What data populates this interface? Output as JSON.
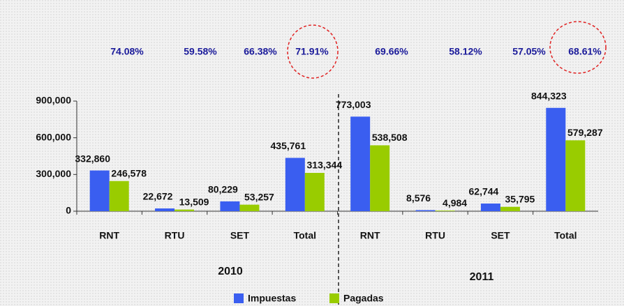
{
  "chart_data": {
    "type": "bar",
    "categories": [
      "RNT",
      "RTU",
      "SET",
      "Total",
      "RNT",
      "RTU",
      "SET",
      "Total"
    ],
    "groups": [
      "2010",
      "2011"
    ],
    "annotations": [
      "74.08%",
      "59.58%",
      "66.38%",
      "71.91%",
      "69.66%",
      "58.12%",
      "57.05%",
      "68.61%"
    ],
    "series": [
      {
        "name": "Impuestas",
        "color": "#3a5ef0",
        "values": [
          332860,
          22672,
          80229,
          435761,
          773003,
          8576,
          62744,
          844323
        ],
        "value_labels": [
          "332,860",
          "22,672",
          "80,229",
          "435,761",
          "773,003",
          "8,576",
          "62,744",
          "844,323"
        ]
      },
      {
        "name": "Pagadas",
        "color": "#99cc00",
        "values": [
          246578,
          13509,
          53257,
          313344,
          538508,
          4984,
          35795,
          579287
        ],
        "value_labels": [
          "246,578",
          "13,509",
          "53,257",
          "313,344",
          "538,508",
          "4,984",
          "35,795",
          "579,287"
        ]
      }
    ],
    "ylim": [
      0,
      900000
    ],
    "yticks": [
      0,
      {
        "value": 300000,
        "label": "300,000"
      },
      {
        "value": 600000,
        "label": "600,000"
      },
      {
        "value": 900000,
        "label": "900,000"
      }
    ],
    "grid": false,
    "legend": "bottom"
  }
}
